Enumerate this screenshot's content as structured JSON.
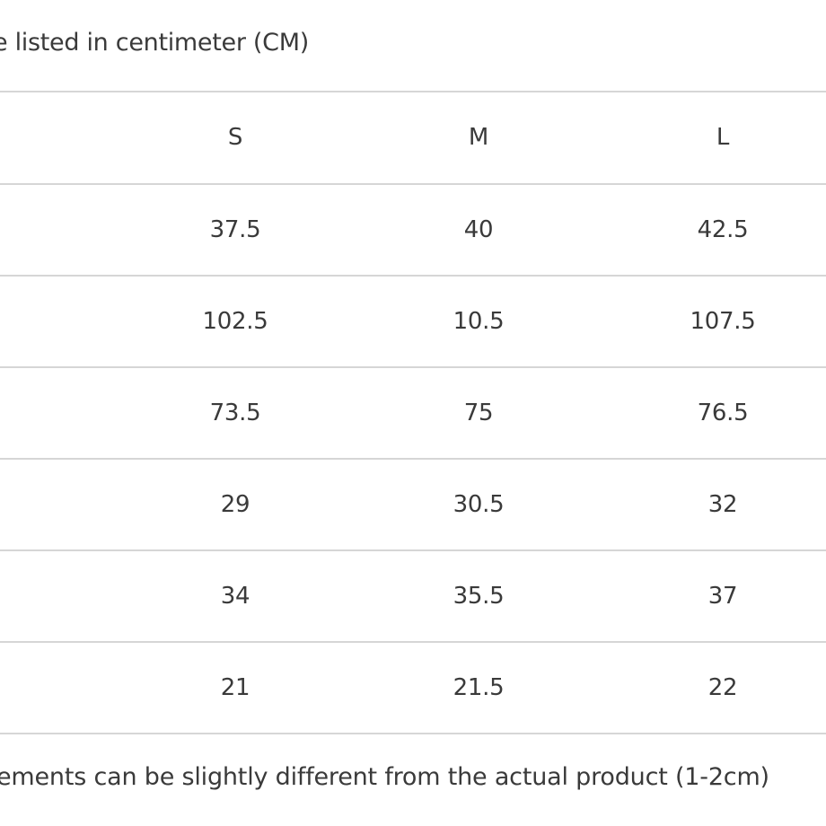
{
  "notes": {
    "top": "e listed in centimeter (CM)",
    "bottom": "ements can be slightly different from the actual product (1-2cm)"
  },
  "table": {
    "headers": [
      "S",
      "M",
      "L"
    ],
    "rows": [
      [
        "37.5",
        "40",
        "42.5"
      ],
      [
        "102.5",
        "10.5",
        "107.5"
      ],
      [
        "73.5",
        "75",
        "76.5"
      ],
      [
        "29",
        "30.5",
        "32"
      ],
      [
        "34",
        "35.5",
        "37"
      ],
      [
        "21",
        "21.5",
        "22"
      ]
    ]
  }
}
